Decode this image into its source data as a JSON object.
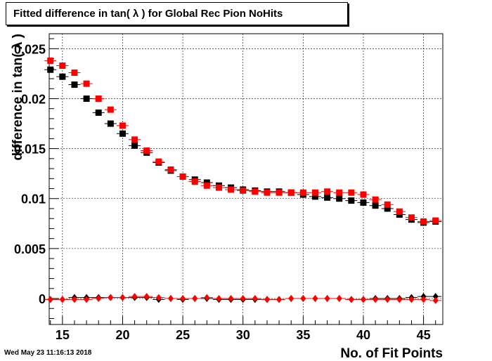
{
  "title": "Fitted difference in tan( λ ) for Global Rec Pion NoHits",
  "timestamp": "Wed May 23 11:16:13 2018",
  "chart_data": {
    "type": "scatter",
    "title": "Fitted difference in tan( λ ) for Global Rec Pion NoHits",
    "xlabel": "No. of Fit Points",
    "ylabel": "difference in tan( λ )",
    "xlim": [
      13.9,
      46.6
    ],
    "ylim": [
      -0.0026,
      0.0265
    ],
    "xticks": [
      15,
      20,
      25,
      30,
      35,
      40,
      45
    ],
    "yticks": [
      0,
      0.005,
      0.01,
      0.015,
      0.02,
      0.025
    ],
    "ytick_labels": [
      "0",
      "0.005",
      "0.01",
      "0.015",
      "0.02",
      "0.025"
    ],
    "grid": true,
    "x": [
      14,
      15,
      16,
      17,
      18,
      19,
      20,
      21,
      22,
      23,
      24,
      25,
      26,
      27,
      28,
      29,
      30,
      31,
      32,
      33,
      34,
      35,
      36,
      37,
      38,
      39,
      40,
      41,
      42,
      43,
      44,
      45,
      46
    ],
    "series": [
      {
        "marker": "square",
        "color": "#000000",
        "values": [
          0.0229,
          0.0222,
          0.0214,
          0.02,
          0.0186,
          0.0175,
          0.0165,
          0.0153,
          0.0146,
          0.0136,
          0.0128,
          0.0122,
          0.0119,
          0.0116,
          0.0113,
          0.0111,
          0.0109,
          0.0108,
          0.0107,
          0.0107,
          0.0106,
          0.0104,
          0.0102,
          0.0101,
          0.01,
          0.0098,
          0.0096,
          0.0093,
          0.009,
          0.0084,
          0.0079,
          0.0076,
          0.0077
        ]
      },
      {
        "marker": "square",
        "color": "#ff0000",
        "values": [
          0.0238,
          0.0233,
          0.0226,
          0.0215,
          0.02,
          0.0189,
          0.0173,
          0.0159,
          0.0148,
          0.0137,
          0.0129,
          0.0122,
          0.0117,
          0.0113,
          0.0111,
          0.0109,
          0.0108,
          0.0107,
          0.0106,
          0.0106,
          0.0106,
          0.0106,
          0.0106,
          0.0107,
          0.0106,
          0.0106,
          0.0104,
          0.0099,
          0.0094,
          0.0087,
          0.0081,
          0.0077,
          0.0078
        ]
      },
      {
        "marker": "diamond",
        "color": "#000000",
        "values": [
          -0.0001,
          -0.0001,
          0.0001,
          0.0001,
          0.0001,
          0.0001,
          0.0001,
          0.0001,
          0.0001,
          -0.0001,
          0.0,
          -0.0001,
          0.0,
          0.0,
          -0.0001,
          -0.0001,
          -0.0001,
          -0.0001,
          -0.0001,
          -0.0001,
          0.0,
          0.0,
          0.0,
          0.0,
          0.0,
          -0.0001,
          -0.0001,
          0.0,
          0.0,
          0.0,
          0.0001,
          0.0002,
          0.0002
        ]
      },
      {
        "marker": "diamond",
        "color": "#ff0000",
        "values": [
          -0.0001,
          -0.0001,
          -0.0001,
          -0.0001,
          0.0,
          0.0001,
          0.0001,
          0.0002,
          0.0002,
          0.0001,
          0.0,
          0.0,
          0.0,
          0.0001,
          0.0,
          0.0,
          0.0,
          0.0,
          -0.0001,
          -0.0001,
          0.0,
          0.0,
          0.0,
          0.0,
          0.0,
          -0.0001,
          -0.0001,
          -0.0001,
          -0.0001,
          -0.0001,
          -0.0001,
          -0.0001,
          -0.0002
        ]
      }
    ]
  }
}
